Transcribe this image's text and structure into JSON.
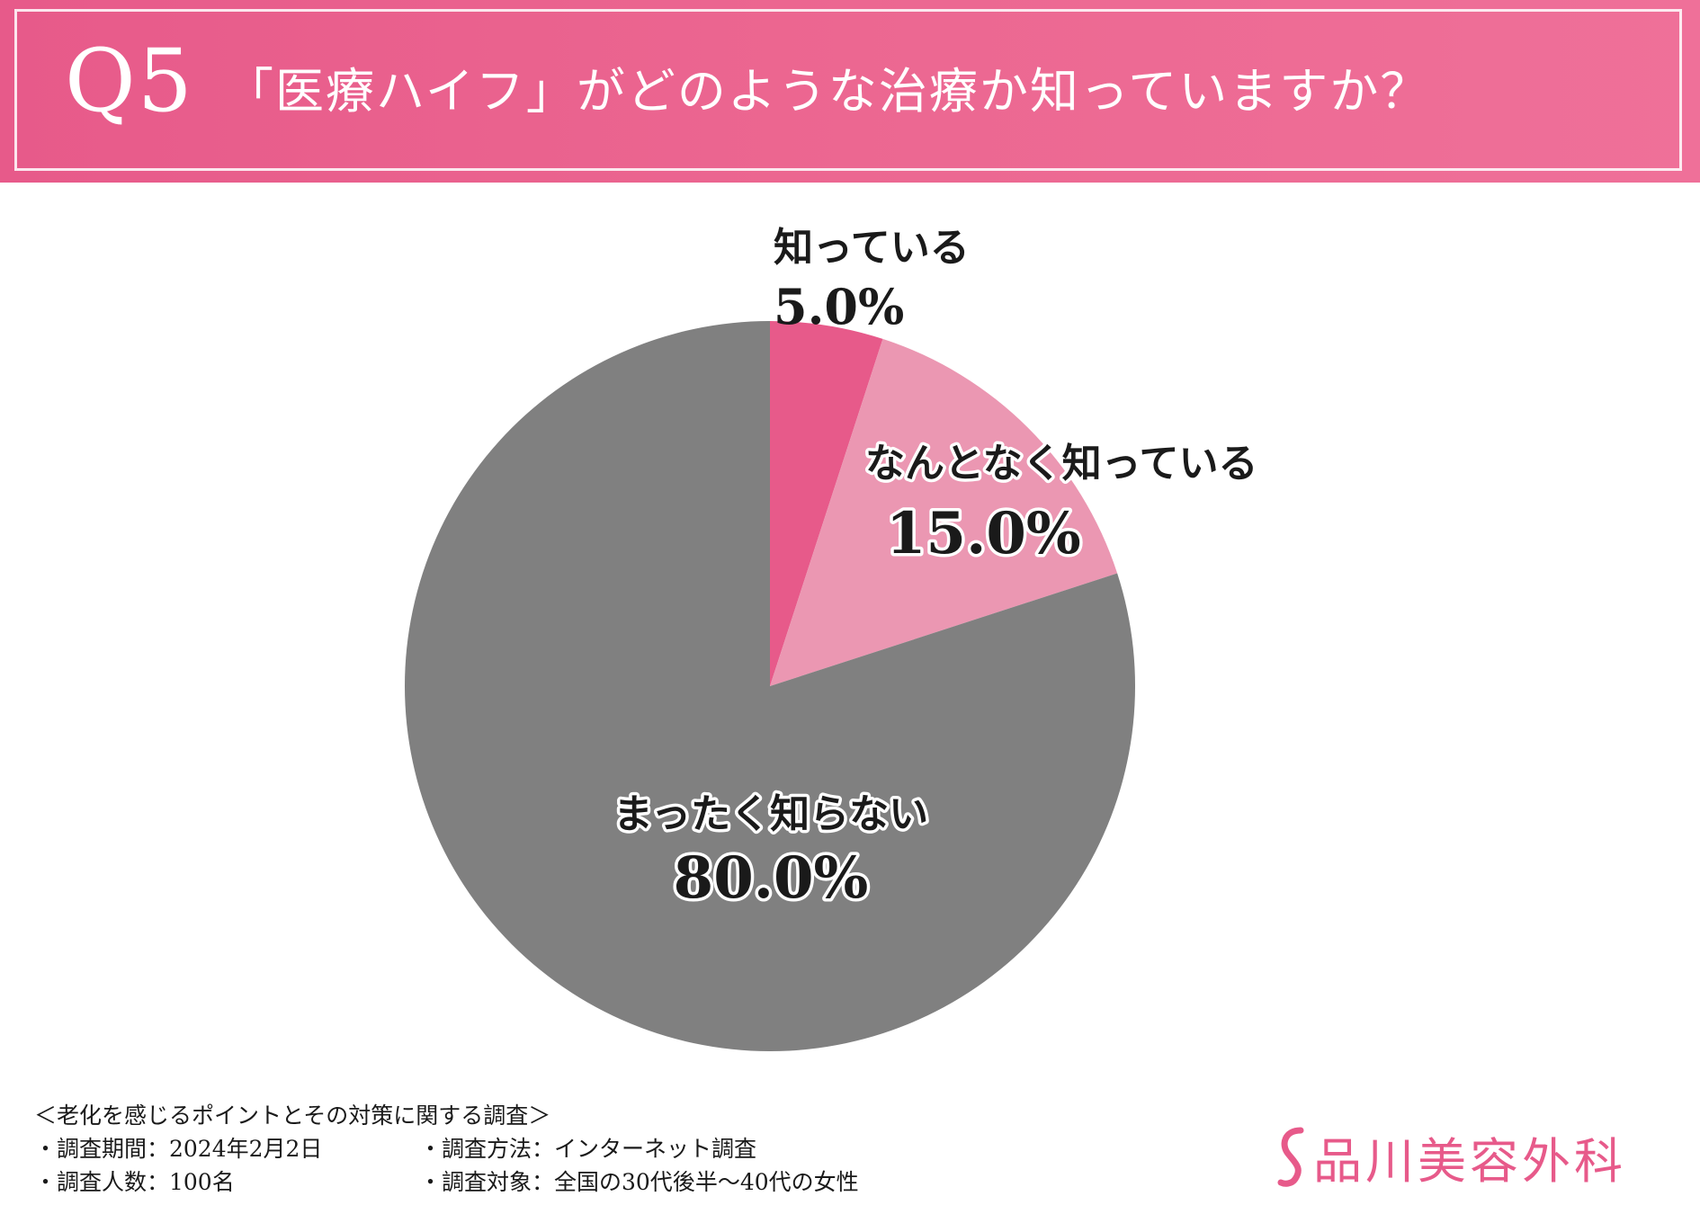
{
  "header": {
    "q_label": "Q5",
    "question": "「医療ハイフ」がどのような治療か知っていますか？"
  },
  "chart_data": {
    "type": "pie",
    "categories": [
      "知っている",
      "なんとなく知っている",
      "まったく知らない"
    ],
    "values": [
      5.0,
      15.0,
      80.0
    ],
    "value_labels": [
      "5.0%",
      "15.0%",
      "80.0%"
    ],
    "unit": "%",
    "colors": [
      "#e75a8a",
      "#eb97b2",
      "#808080"
    ],
    "start": "12 o'clock",
    "direction": "clockwise",
    "legend": "none"
  },
  "footer": {
    "title": "＜老化を感じるポイントとその対策に関する調査＞",
    "items": [
      "・調査期間：2024年2月2日",
      "・調査方法：インターネット調査",
      "・調査人数：100名",
      "・調査対象：全国の30代後半〜40代の女性"
    ]
  },
  "brand": {
    "name": "品川美容外科",
    "color": "#e75a8a"
  }
}
